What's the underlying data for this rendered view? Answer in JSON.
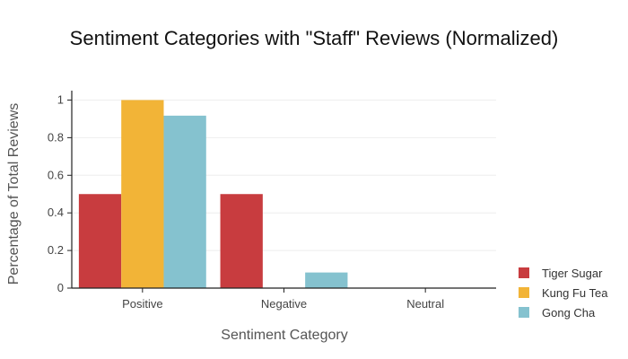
{
  "chart_data": {
    "type": "bar",
    "title": "Sentiment Categories with \"Staff\" Reviews (Normalized)",
    "xlabel": "Sentiment Category",
    "ylabel": "Percentage of Total Reviews",
    "categories": [
      "Positive",
      "Negative",
      "Neutral"
    ],
    "ylim": [
      0,
      1.05
    ],
    "yticks": [
      "0",
      "0.2",
      "0.4",
      "0.6",
      "0.8",
      "1"
    ],
    "grid": true,
    "legend_position": "bottom-right",
    "series": [
      {
        "name": "Tiger Sugar",
        "color": "#c83c3f",
        "values": [
          0.5,
          0.5,
          0
        ]
      },
      {
        "name": "Kung Fu Tea",
        "color": "#f2b437",
        "values": [
          1.0,
          0,
          0
        ]
      },
      {
        "name": "Gong Cha",
        "color": "#85c2cf",
        "values": [
          0.917,
          0.083,
          0
        ]
      }
    ]
  }
}
